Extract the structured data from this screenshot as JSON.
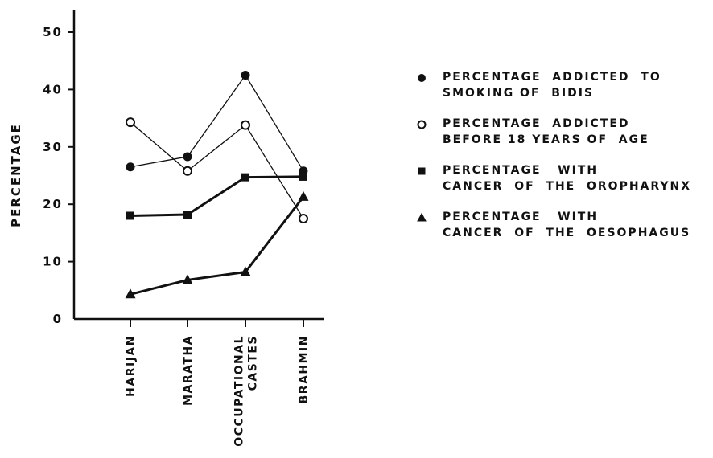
{
  "chart_data": {
    "type": "line",
    "ylabel": "PERCENTAGE",
    "xlabel": "",
    "ylim": [
      0,
      50
    ],
    "yticks": [
      0,
      10,
      20,
      30,
      40,
      50
    ],
    "grid": false,
    "legend_position": "right",
    "categories": [
      [
        "HARIJAN"
      ],
      [
        "MARATHA"
      ],
      [
        "OCCUPATIONAL",
        "CASTES"
      ],
      [
        "BRAHMIN"
      ]
    ],
    "series": [
      {
        "name_lines": [
          "PERCENTAGE  ADDICTED  TO",
          "SMOKING OF  BIDIS"
        ],
        "marker": "filled-circle",
        "stroke": "thin",
        "values": [
          26.5,
          28.3,
          42.5,
          25.8
        ]
      },
      {
        "name_lines": [
          "PERCENTAGE  ADDICTED",
          "BEFORE 18 YEARS OF  AGE"
        ],
        "marker": "open-circle",
        "stroke": "thin",
        "values": [
          34.3,
          25.8,
          33.8,
          17.5
        ]
      },
      {
        "name_lines": [
          "PERCENTAGE   WITH",
          "CANCER  OF  THE  OROPHARYNX"
        ],
        "marker": "filled-square",
        "stroke": "thick",
        "values": [
          18.0,
          18.2,
          24.7,
          24.8
        ]
      },
      {
        "name_lines": [
          "PERCENTAGE   WITH",
          "CANCER  OF  THE  OESOPHAGUS"
        ],
        "marker": "filled-triangle",
        "stroke": "thick",
        "values": [
          4.3,
          6.8,
          8.2,
          21.3
        ]
      }
    ]
  }
}
